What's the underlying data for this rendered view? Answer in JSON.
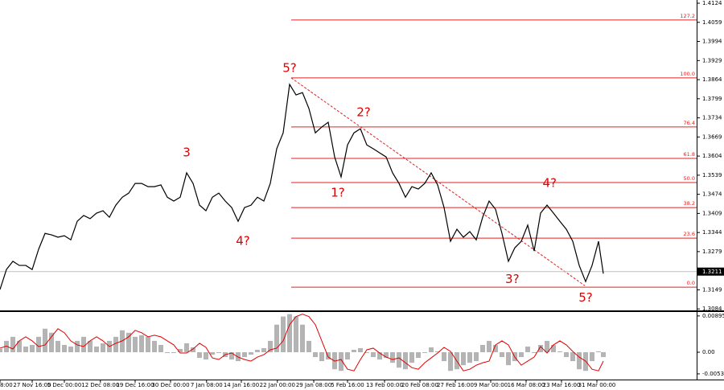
{
  "chart_data": [
    {
      "type": "line",
      "color": "#000000",
      "xlim": [
        0,
        108.25
      ],
      "ylim": [
        1.3079,
        1.4135
      ],
      "x": [
        0,
        1,
        2,
        3,
        4,
        5,
        6,
        7,
        8,
        9,
        10,
        11,
        12,
        13,
        14,
        15,
        16,
        17,
        18,
        19,
        20,
        21,
        22,
        23,
        24,
        25,
        26,
        27,
        28,
        29,
        30,
        31,
        32,
        33,
        34,
        35,
        36,
        37,
        38,
        39,
        40,
        41,
        42,
        43,
        44,
        45,
        46,
        47,
        48,
        49,
        50,
        51,
        52,
        53,
        54,
        55,
        56,
        57,
        58,
        59,
        60,
        61,
        62,
        63,
        64,
        65,
        66,
        67,
        68,
        69,
        70,
        71,
        72,
        73,
        74,
        75,
        76,
        77,
        78,
        79,
        80,
        81,
        82,
        83,
        84,
        85,
        86,
        87,
        88,
        89,
        90,
        91,
        92,
        93,
        93.75
      ],
      "values": [
        1.315,
        1.3218,
        1.3246,
        1.3232,
        1.3232,
        1.3218,
        1.3287,
        1.3341,
        1.3336,
        1.3328,
        1.3333,
        1.3319,
        1.3382,
        1.3402,
        1.3391,
        1.341,
        1.3418,
        1.3396,
        1.3437,
        1.3464,
        1.3478,
        1.3511,
        1.3511,
        1.35,
        1.35,
        1.3506,
        1.3464,
        1.3451,
        1.3464,
        1.3547,
        1.3511,
        1.3437,
        1.3418,
        1.3464,
        1.3478,
        1.3451,
        1.3429,
        1.3382,
        1.3429,
        1.3437,
        1.3464,
        1.3451,
        1.3511,
        1.3629,
        1.3683,
        1.3848,
        1.3812,
        1.382,
        1.3766,
        1.3683,
        1.3703,
        1.3719,
        1.3601,
        1.3533,
        1.3642,
        1.3683,
        1.3697,
        1.3642,
        1.3629,
        1.3615,
        1.3601,
        1.3547,
        1.3511,
        1.3464,
        1.35,
        1.3492,
        1.3511,
        1.3547,
        1.3506,
        1.3429,
        1.3314,
        1.3355,
        1.3328,
        1.3347,
        1.3319,
        1.3396,
        1.3451,
        1.3423,
        1.3341,
        1.3246,
        1.3292,
        1.3314,
        1.3369,
        1.3281,
        1.341,
        1.3437,
        1.341,
        1.3382,
        1.3355,
        1.3314,
        1.3232,
        1.3177,
        1.3232,
        1.3314,
        1.3204
      ],
      "yticks": [
        1.4124,
        1.4059,
        1.3994,
        1.3929,
        1.3864,
        1.3799,
        1.3734,
        1.3669,
        1.3604,
        1.3539,
        1.3474,
        1.3409,
        1.3344,
        1.3279,
        1.3149,
        1.3084
      ],
      "xticks": [
        {
          "value": 0,
          "label": "8:00"
        },
        {
          "value": 5,
          "label": "27 Nov 16:00"
        },
        {
          "value": 10,
          "label": "5 Dec 00:00"
        },
        {
          "value": 15.6,
          "label": "12 Dec 08:00"
        },
        {
          "value": 21,
          "label": "19 Dec 16:00"
        },
        {
          "value": 26.5,
          "label": "30 Dec 00:00"
        },
        {
          "value": 32.1,
          "label": "7 Jan 08:00"
        },
        {
          "value": 37.5,
          "label": "14 Jan 16:00"
        },
        {
          "value": 43.1,
          "label": "22 Jan 00:00"
        },
        {
          "value": 48.75,
          "label": "29 Jan 08:00"
        },
        {
          "value": 54,
          "label": "5 Feb 16:00"
        },
        {
          "value": 59.75,
          "label": "13 Feb 00:00"
        },
        {
          "value": 65.25,
          "label": "20 Feb 08:00"
        },
        {
          "value": 70.75,
          "label": "27 Feb 16:00"
        },
        {
          "value": 76.25,
          "label": "9 Mar 00:00"
        },
        {
          "value": 81.75,
          "label": "16 Mar 08:00"
        },
        {
          "value": 87.25,
          "label": "23 Mar 16:00"
        },
        {
          "value": 92.75,
          "label": "31 Mar 00:00"
        }
      ],
      "current_price": 1.3211,
      "fib_color": "#e02020",
      "fib_start": 45.25,
      "fib_levels": [
        {
          "label": "127.2",
          "value": 1.4067
        },
        {
          "label": "100.0",
          "value": 1.387
        },
        {
          "label": "76.4",
          "value": 1.3703
        },
        {
          "label": "61.8",
          "value": 1.3596
        },
        {
          "label": "50.0",
          "value": 1.3514
        },
        {
          "label": "38.2",
          "value": 1.3429
        },
        {
          "label": "23.6",
          "value": 1.3325
        },
        {
          "label": "0.0",
          "value": 1.3158
        }
      ],
      "trendline": {
        "x": [
          45.25,
          90.875
        ],
        "y": [
          1.387,
          1.3163
        ]
      },
      "annotations": [
        {
          "text": "5?",
          "x": 45,
          "y": 1.3902
        },
        {
          "text": "3",
          "x": 29,
          "y": 1.3615
        },
        {
          "text": "4?",
          "x": 37.75,
          "y": 1.3314
        },
        {
          "text": "2?",
          "x": 56.5,
          "y": 1.3752
        },
        {
          "text": "1?",
          "x": 52.5,
          "y": 1.3478
        },
        {
          "text": "4?",
          "x": 85.4,
          "y": 1.3511
        },
        {
          "text": "3?",
          "x": 79.6,
          "y": 1.3185
        },
        {
          "text": "5?",
          "x": 91,
          "y": 1.3122
        }
      ]
    },
    {
      "type": "bar",
      "xlim": [
        0,
        108.25
      ],
      "ylim": [
        -0.00674,
        0.00992
      ],
      "x": [
        0,
        1,
        2,
        3,
        4,
        5,
        6,
        7,
        8,
        9,
        10,
        11,
        12,
        13,
        14,
        15,
        16,
        17,
        18,
        19,
        20,
        21,
        22,
        23,
        24,
        25,
        26,
        27,
        28,
        29,
        30,
        31,
        32,
        33,
        34,
        35,
        36,
        37,
        38,
        39,
        40,
        41,
        42,
        43,
        44,
        45,
        46,
        47,
        48,
        49,
        50,
        51,
        52,
        53,
        54,
        55,
        56,
        57,
        58,
        59,
        60,
        61,
        62,
        63,
        64,
        65,
        66,
        67,
        68,
        69,
        70,
        71,
        72,
        73,
        74,
        75,
        76,
        77,
        78,
        79,
        80,
        81,
        82,
        83,
        84,
        85,
        86,
        87,
        88,
        89,
        90,
        91,
        92,
        93,
        93.75
      ],
      "yticks": [
        0.00895,
        {
          "value": 0,
          "label": "0.00"
        },
        -0.00534
      ],
      "series": [
        {
          "type": "bar",
          "color": "#b4b4b4",
          "values": [
            0.0008,
            0.0028,
            0.0038,
            0.0028,
            0.0014,
            0.0018,
            0.0038,
            0.0058,
            0.0048,
            0.0028,
            0.0018,
            0.0014,
            0.0028,
            0.0038,
            0.0028,
            0.0014,
            0.0022,
            0.0028,
            0.0038,
            0.0054,
            0.0048,
            0.0038,
            0.0042,
            0.0038,
            0.0028,
            0.0018,
            -0.0002,
            -0.0002,
            0.0008,
            0.0022,
            0.0012,
            -0.0014,
            -0.0018,
            -0.0006,
            -0.0002,
            -0.0012,
            -0.0018,
            -0.0022,
            -0.0012,
            -0.0006,
            0.0006,
            0.001,
            0.0028,
            0.0068,
            0.0088,
            0.0094,
            0.0088,
            0.0068,
            0.0028,
            -0.0012,
            -0.0022,
            -0.0018,
            -0.0042,
            -0.0046,
            -0.0018,
            0.0006,
            0.001,
            -0.0002,
            -0.0012,
            -0.0018,
            -0.0014,
            -0.0026,
            -0.0038,
            -0.0042,
            -0.0026,
            -0.0014,
            -0.0002,
            0.0012,
            0.0002,
            -0.0022,
            -0.0046,
            -0.0042,
            -0.0032,
            -0.0026,
            -0.0022,
            0.0018,
            0.0028,
            0.0018,
            -0.0012,
            -0.0032,
            -0.0022,
            -0.0012,
            0.0014,
            -0.0002,
            0.0018,
            0.0028,
            0.0018,
            0.0002,
            -0.0012,
            -0.0022,
            -0.0042,
            -0.0046,
            -0.0022,
            0.0002,
            -0.0012
          ]
        },
        {
          "type": "line",
          "color": "#e00000",
          "values": [
            0.001,
            0.0015,
            0.0008,
            0.0028,
            0.0038,
            0.0028,
            0.0014,
            0.0018,
            0.0038,
            0.0058,
            0.0048,
            0.0028,
            0.0018,
            0.0014,
            0.0028,
            0.0038,
            0.0028,
            0.0014,
            0.0022,
            0.0028,
            0.0038,
            0.0054,
            0.0048,
            0.0038,
            0.0042,
            0.0038,
            0.0028,
            0.0018,
            -0.0002,
            -0.0002,
            0.0008,
            0.0022,
            0.0012,
            -0.0014,
            -0.0018,
            -0.0006,
            -0.0002,
            -0.0012,
            -0.0018,
            -0.0022,
            -0.0012,
            -0.0006,
            0.0006,
            0.001,
            0.0028,
            0.0068,
            0.0088,
            0.0094,
            0.0088,
            0.0068,
            0.0028,
            -0.0012,
            -0.0022,
            -0.0018,
            -0.0042,
            -0.0046,
            -0.0018,
            0.0006,
            0.001,
            -0.0002,
            -0.0012,
            -0.0018,
            -0.0014,
            -0.0026,
            -0.0038,
            -0.0042,
            -0.0026,
            -0.0014,
            -0.0002,
            0.0012,
            0.0002,
            -0.0022,
            -0.0046,
            -0.0042,
            -0.0032,
            -0.0026,
            -0.0022,
            0.0018,
            0.0028,
            0.0018,
            -0.0012,
            -0.0032,
            -0.0022,
            -0.0012,
            0.0014,
            -0.0002,
            0.0018,
            0.0028,
            0.0018,
            0.0002,
            -0.0012,
            -0.0022,
            -0.0042,
            -0.0046,
            -0.0022
          ]
        }
      ]
    }
  ]
}
